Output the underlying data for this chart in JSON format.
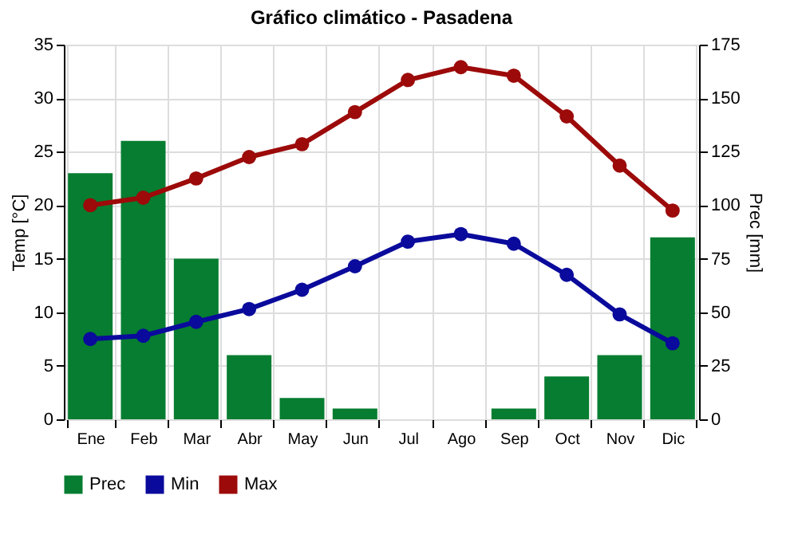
{
  "chart_data": {
    "type": "bar",
    "title": "Gráfico climático - Pasadena",
    "ylabel": "Temp [°C]",
    "y2label": "Prec [mm]",
    "categories": [
      "Ene",
      "Feb",
      "Mar",
      "Abr",
      "May",
      "Jun",
      "Jul",
      "Ago",
      "Sep",
      "Oct",
      "Nov",
      "Dic"
    ],
    "series": [
      {
        "name": "Prec",
        "axis": "y2",
        "color": "#067d30",
        "values": [
          115,
          130,
          75,
          30,
          10,
          5,
          0,
          0,
          5,
          20,
          30,
          85
        ]
      },
      {
        "name": "Min",
        "type": "line",
        "color": "#0a0a9c",
        "values": [
          7.5,
          7.8,
          9.1,
          10.3,
          12.1,
          14.3,
          16.6,
          17.3,
          16.4,
          13.5,
          9.8,
          7.1
        ]
      },
      {
        "name": "Max",
        "type": "line",
        "color": "#9c0a0a",
        "values": [
          20.0,
          20.7,
          22.5,
          24.5,
          25.7,
          28.7,
          31.7,
          32.9,
          32.1,
          28.3,
          23.7,
          19.5
        ]
      }
    ],
    "ylim": [
      0,
      35
    ],
    "yticks": [
      0,
      5,
      10,
      15,
      20,
      25,
      30,
      35
    ],
    "y2lim": [
      0,
      175
    ],
    "y2ticks": [
      0,
      25,
      50,
      75,
      100,
      125,
      150,
      175
    ],
    "grid": true,
    "legend": "bottom left",
    "marker": "circle"
  }
}
